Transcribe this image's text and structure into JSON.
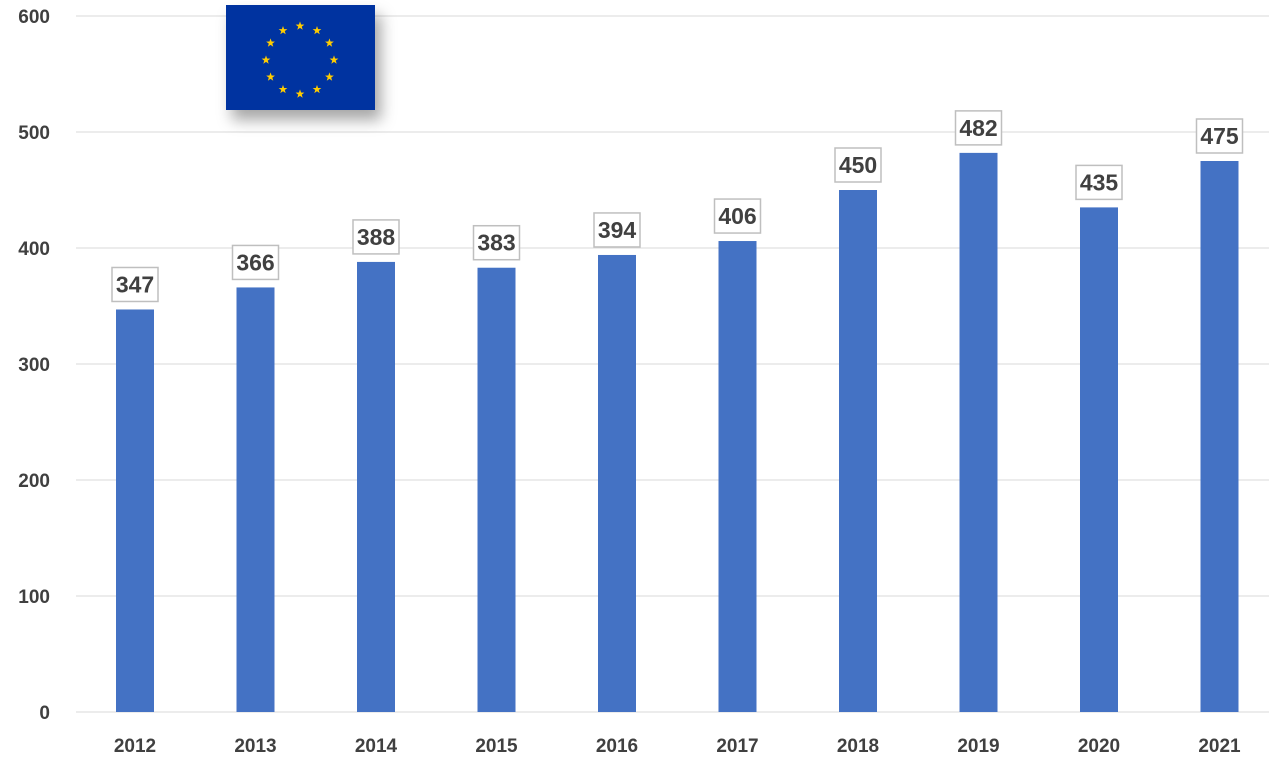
{
  "chart_data": {
    "type": "bar",
    "title": "",
    "xlabel": "",
    "ylabel": "",
    "categories": [
      "2012",
      "2013",
      "2014",
      "2015",
      "2016",
      "2017",
      "2018",
      "2019",
      "2020",
      "2021"
    ],
    "values": [
      347,
      366,
      388,
      383,
      394,
      406,
      450,
      482,
      435,
      475
    ],
    "ylim": [
      0,
      600
    ],
    "yticks": [
      0,
      100,
      200,
      300,
      400,
      500,
      600
    ],
    "grid": "horizontal",
    "data_labels": true,
    "legend": "none"
  },
  "colors": {
    "bar": "#4472C4",
    "grid": "#d9d9d9",
    "axis_text": "#404040",
    "label_text": "#404040",
    "label_border": "#bfbfbf",
    "flag_blue": "#0033A0",
    "flag_star": "#FFCC00"
  },
  "logo": {
    "icon": "eu-flag-icon"
  }
}
